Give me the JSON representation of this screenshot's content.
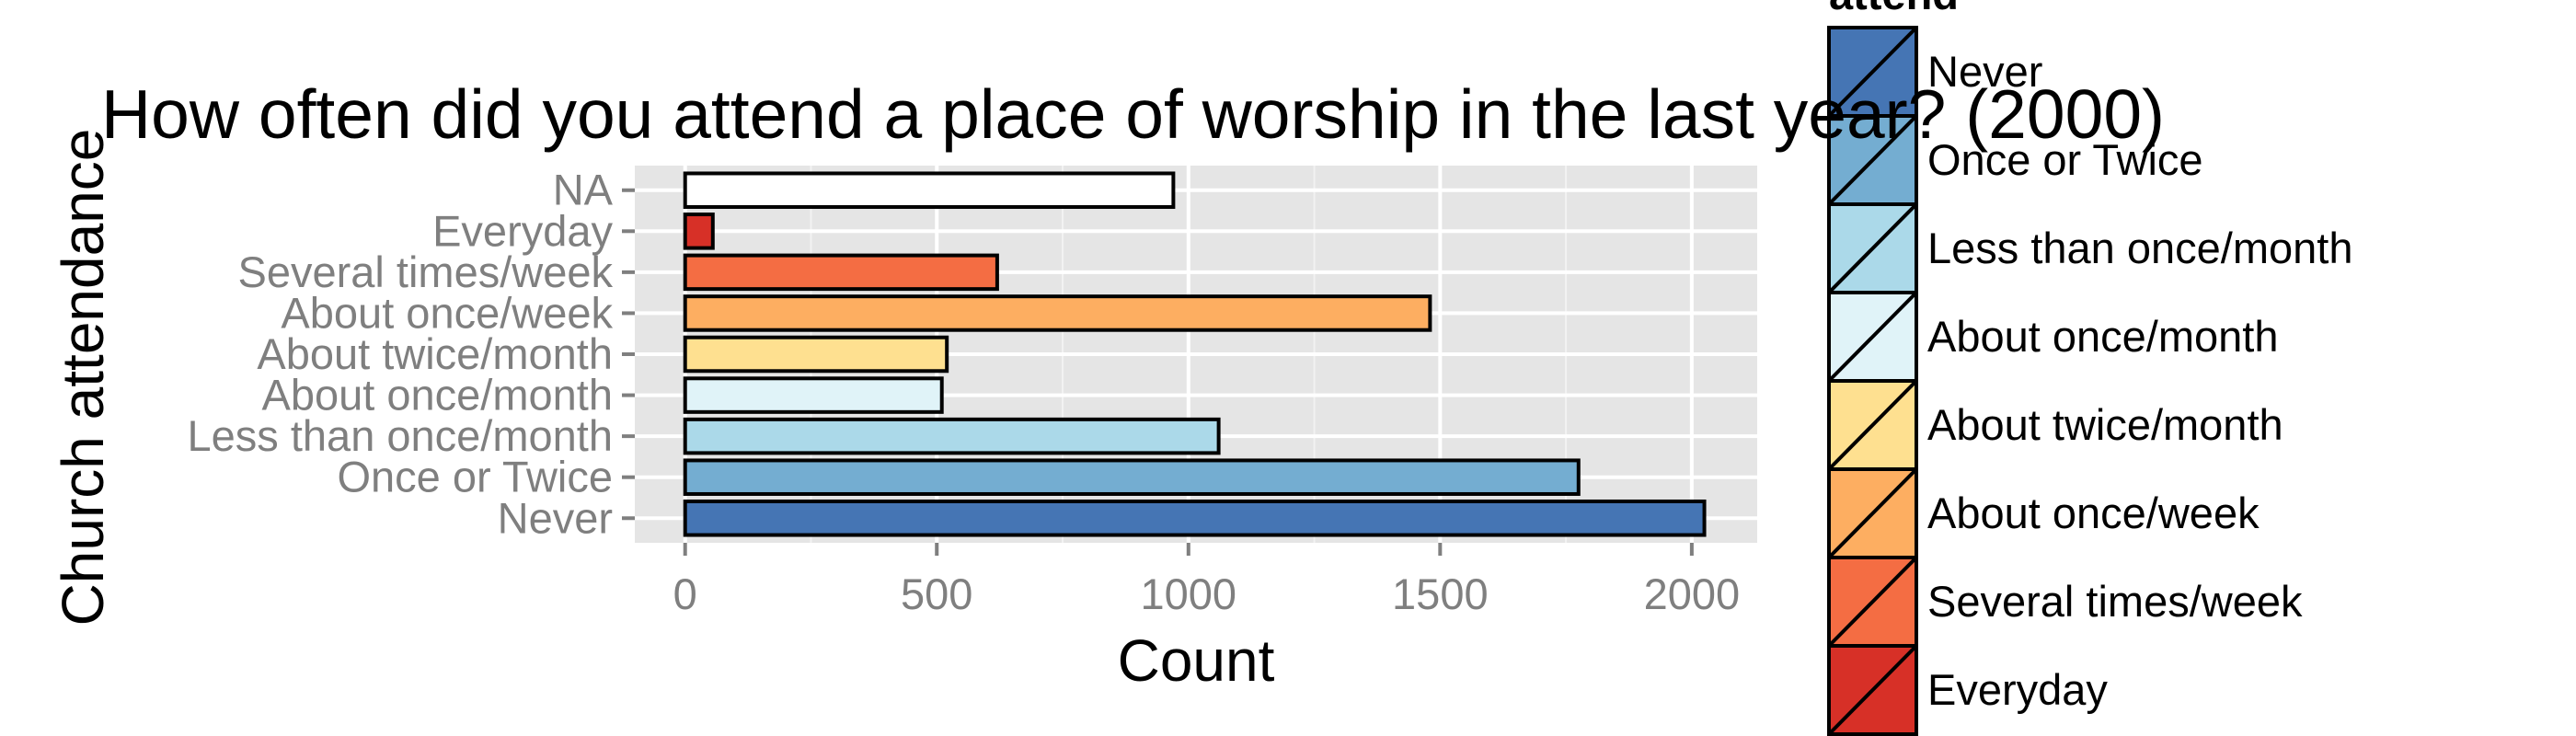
{
  "chart_data": {
    "type": "bar",
    "orientation": "horizontal",
    "title": "How often did you attend a place of worship in the last year? (2000)",
    "xlabel": "Count",
    "ylabel": "Church attendance",
    "xlim": [
      -100,
      2130
    ],
    "x_ticks": [
      0,
      500,
      1000,
      1500,
      2000
    ],
    "grid": true,
    "categories": [
      "NA",
      "Everyday",
      "Several times/week",
      "About once/week",
      "About twice/month",
      "About once/month",
      "Less than once/month",
      "Once or Twice",
      "Never"
    ],
    "values": [
      970,
      55,
      620,
      1480,
      520,
      510,
      1060,
      1775,
      2025
    ],
    "colors": [
      "#FFFFFF",
      "#D73027",
      "#F46D43",
      "#FDAE61",
      "#FEE090",
      "#E0F3F8",
      "#ABD9E9",
      "#74ADD1",
      "#4575B4"
    ],
    "legend": {
      "title": "attend",
      "position": "right",
      "entries": [
        {
          "label": "Never",
          "color": "#4575B4"
        },
        {
          "label": "Once or Twice",
          "color": "#74ADD1"
        },
        {
          "label": "Less than once/month",
          "color": "#ABD9E9"
        },
        {
          "label": "About once/month",
          "color": "#E0F3F8"
        },
        {
          "label": "About twice/month",
          "color": "#FEE090"
        },
        {
          "label": "About once/week",
          "color": "#FDAE61"
        },
        {
          "label": "Several times/week",
          "color": "#F46D43"
        },
        {
          "label": "Everyday",
          "color": "#D73027"
        }
      ]
    }
  }
}
